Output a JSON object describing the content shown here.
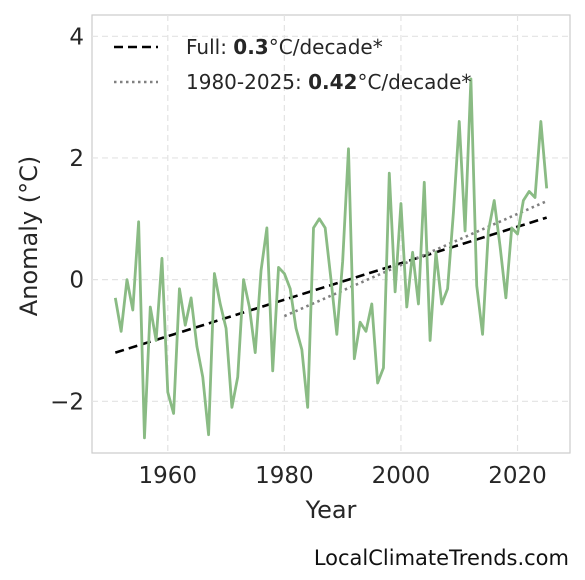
{
  "chart_data": {
    "type": "line",
    "title": "",
    "xlabel": "Year",
    "ylabel": "Anomaly (°C)",
    "xlim": [
      1947,
      2029
    ],
    "ylim": [
      -2.85,
      4.35
    ],
    "xticks": [
      1960,
      1980,
      2000,
      2020
    ],
    "yticks": [
      -2,
      0,
      2,
      4
    ],
    "ytick_labels": [
      "−2",
      "0",
      "2",
      "4"
    ],
    "grid": true,
    "legend_position": "top-left",
    "x": [
      1951,
      1952,
      1953,
      1954,
      1955,
      1956,
      1957,
      1958,
      1959,
      1960,
      1961,
      1962,
      1963,
      1964,
      1965,
      1966,
      1967,
      1968,
      1969,
      1970,
      1971,
      1972,
      1973,
      1974,
      1975,
      1976,
      1977,
      1978,
      1979,
      1980,
      1981,
      1982,
      1983,
      1984,
      1985,
      1986,
      1987,
      1988,
      1989,
      1990,
      1991,
      1992,
      1993,
      1994,
      1995,
      1996,
      1997,
      1998,
      1999,
      2000,
      2001,
      2002,
      2003,
      2004,
      2005,
      2006,
      2007,
      2008,
      2009,
      2010,
      2011,
      2012,
      2013,
      2014,
      2015,
      2016,
      2017,
      2018,
      2019,
      2020,
      2021,
      2022,
      2023,
      2024,
      2025
    ],
    "series": [
      {
        "style": "solid",
        "color": "#8abb84",
        "values": [
          -0.3,
          -0.85,
          0.0,
          -0.5,
          0.95,
          -2.6,
          -0.45,
          -1.0,
          0.35,
          -1.85,
          -2.2,
          -0.15,
          -0.75,
          -0.3,
          -1.1,
          -1.6,
          -2.55,
          0.1,
          -0.4,
          -0.8,
          -2.1,
          -1.6,
          0.0,
          -0.45,
          -1.2,
          0.15,
          0.85,
          -1.5,
          0.2,
          0.1,
          -0.15,
          -0.8,
          -1.15,
          -2.1,
          0.85,
          1.0,
          0.85,
          0.0,
          -0.9,
          0.3,
          2.15,
          -1.3,
          -0.7,
          -0.85,
          -0.4,
          -1.7,
          -1.45,
          1.75,
          -0.2,
          1.25,
          -0.45,
          0.45,
          -0.4,
          1.6,
          -1.0,
          0.45,
          -0.4,
          -0.15,
          1.1,
          2.6,
          0.8,
          3.3,
          -0.1,
          -0.9,
          0.8,
          1.3,
          0.55,
          -0.3,
          0.85,
          0.75,
          1.3,
          1.45,
          1.35,
          2.6,
          1.5
        ]
      }
    ],
    "trends": [
      {
        "style": "dashed",
        "color": "#000000",
        "x": [
          1951,
          2025
        ],
        "values": [
          -1.2,
          1.02
        ]
      },
      {
        "style": "dotted",
        "color": "#808080",
        "x": [
          1980,
          2025
        ],
        "values": [
          -0.6,
          1.29
        ]
      }
    ],
    "legend": [
      {
        "prefix": "Full: ",
        "value": "0.3",
        "suffix": "°C/decade*"
      },
      {
        "prefix": "1980-2025: ",
        "value": "0.42",
        "suffix": "°C/decade*"
      }
    ]
  },
  "footer": {
    "text": "LocalClimateTrends.com"
  }
}
